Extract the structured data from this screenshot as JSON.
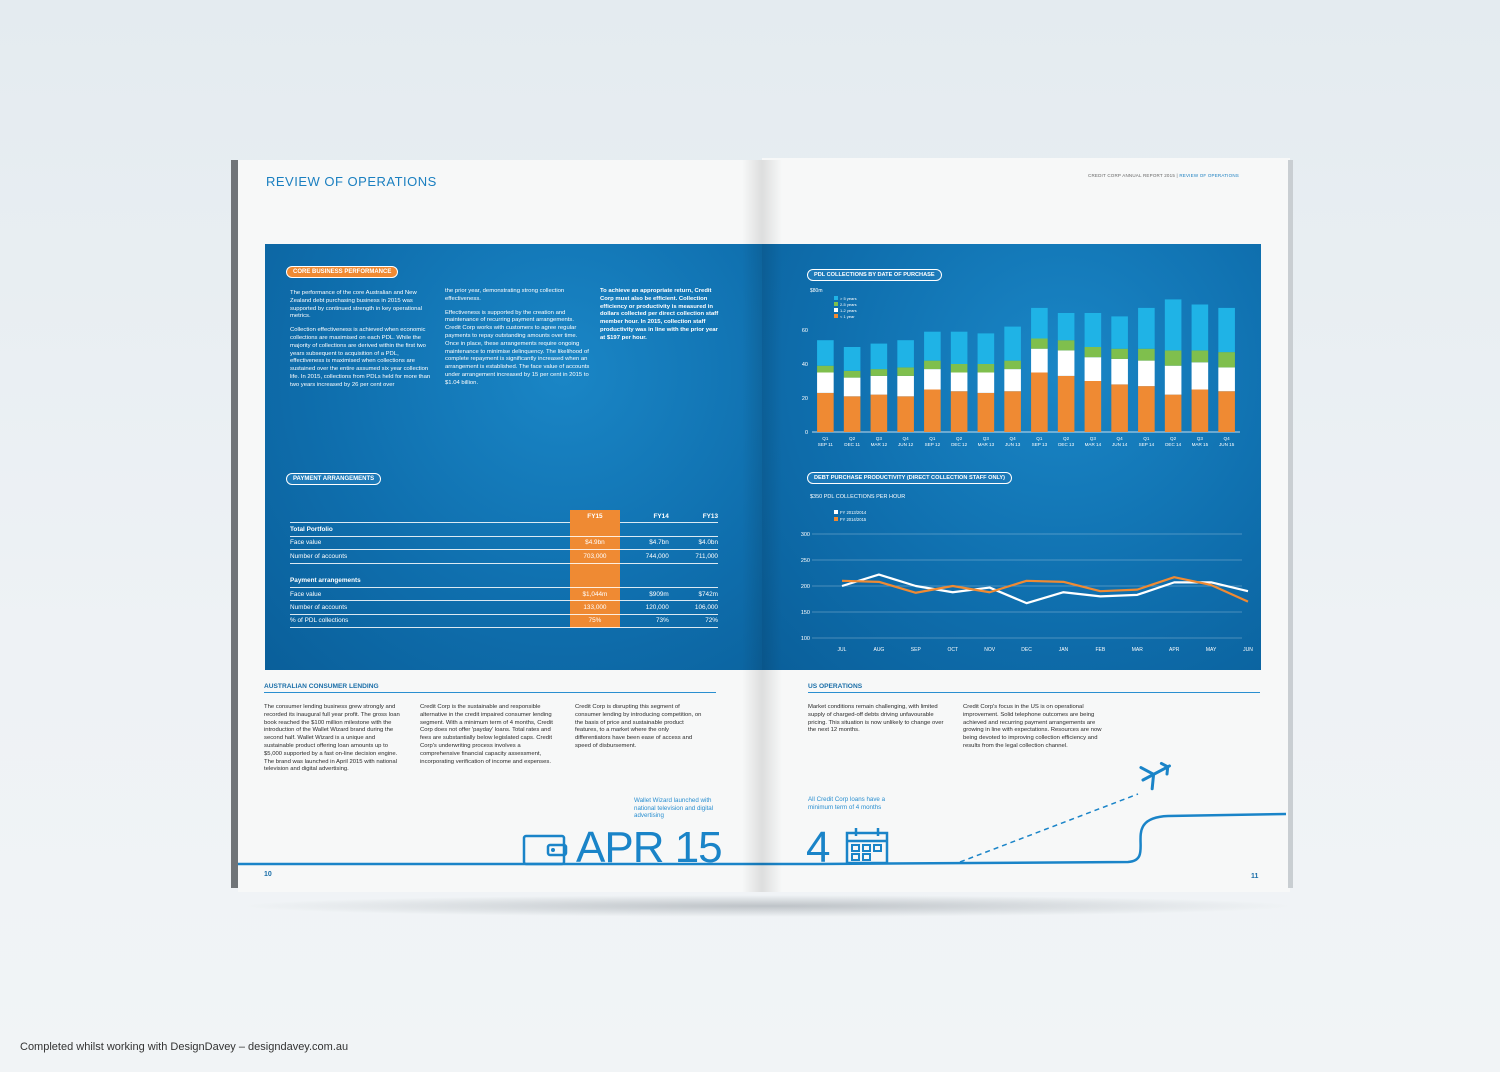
{
  "left_page": {
    "title": "REVIEW OF OPERATIONS",
    "page_number": "10",
    "core": {
      "label": "CORE BUSINESS PERFORMANCE",
      "col1": [
        "The performance of the core Australian and New Zealand debt purchasing business in 2015 was supported by continued strength in key operational metrics.",
        "Collection effectiveness is achieved when economic collections are maximised on each PDL. While the majority of collections are derived within the first two years subsequent to acquisition of a PDL, effectiveness is maximised when collections are sustained over the entire assumed six year collection life. In 2015, collections from PDLs held for more than two years increased by 26 per cent over"
      ],
      "col2": [
        "the prior year, demonstrating strong collection effectiveness.",
        "Effectiveness is supported by the creation and maintenance of recurring payment arrangements. Credit Corp works with customers to agree regular payments to repay outstanding amounts over time. Once in place, these arrangements require ongoing maintenance to minimise delinquency. The likelihood of complete repayment is significantly increased when an arrangement is established. The face value of accounts under arrangement increased by 15 per cent in 2015 to $1.04 billion."
      ],
      "col3": "To achieve an appropriate return, Credit Corp must also be efficient. Collection efficiency or productivity is measured in dollars collected per direct collection staff member hour. In 2015, collection staff productivity was in line with the prior year at $197 per hour."
    },
    "payment": {
      "label": "PAYMENT ARRANGEMENTS",
      "columns": [
        "FY15",
        "FY14",
        "FY13"
      ],
      "rows": [
        {
          "label": "Total Portfolio",
          "values": [
            "",
            "",
            ""
          ],
          "heading": true
        },
        {
          "label": "Face value",
          "values": [
            "$4.9bn",
            "$4.7bn",
            "$4.0bn"
          ]
        },
        {
          "label": "Number of accounts",
          "values": [
            "703,000",
            "744,000",
            "711,000"
          ]
        },
        {
          "label": "",
          "values": [
            "",
            "",
            ""
          ],
          "blank": true
        },
        {
          "label": "Payment arrangements",
          "values": [
            "",
            "",
            ""
          ],
          "heading": true
        },
        {
          "label": "Face value",
          "values": [
            "$1,044m",
            "$909m",
            "$742m"
          ]
        },
        {
          "label": "Number of accounts",
          "values": [
            "133,000",
            "120,000",
            "106,000"
          ]
        },
        {
          "label": "% of PDL collections",
          "values": [
            "75%",
            "73%",
            "72%"
          ]
        }
      ]
    },
    "consumer": {
      "heading": "AUSTRALIAN CONSUMER LENDING",
      "col1": "The consumer lending business grew strongly and recorded its inaugural full year profit. The gross loan book reached the $100 million milestone with the introduction of the Wallet Wizard brand during the second half. Wallet Wizard is a unique and sustainable product offering loan amounts up to $5,000 supported by a fast on-line decision engine. The brand was launched in April 2015 with national television and digital advertising.",
      "col2": "Credit Corp is the sustainable and responsible alternative in the credit impaired consumer lending segment. With a minimum term of 4 months, Credit Corp does not offer 'payday' loans. Total rates and fees are substantially below legislated caps. Credit Corp's underwriting process involves a comprehensive financial capacity assessment, incorporating verification of income and expenses.",
      "col3": "Credit Corp is disrupting this segment of consumer lending by introducing competition, on the basis of price and sustainable product features, to a market where the only differentiators have been ease of access and speed of disbursement.",
      "caption": "Wallet Wizard launched with national television and digital advertising",
      "big_text": "APR 15"
    }
  },
  "right_page": {
    "header": "CREDIT CORP ANNUAL REPORT 2015 |",
    "header_highlight": "REVIEW OF OPERATIONS",
    "page_number": "11",
    "us": {
      "heading": "US OPERATIONS",
      "col1": "Market conditions remain challenging, with limited supply of charged-off debts driving unfavourable pricing. This situation is now unlikely to change over the next 12 months.",
      "col2": "Credit Corp's focus in the US is on operational improvement. Solid telephone outcomes are being achieved and recurring payment arrangements are growing in line with expectations. Resources are now being devoted to improving collection efficiency and results from the legal collection channel.",
      "caption": "All Credit Corp loans have a minimum term of 4 months",
      "big_text": "4"
    }
  },
  "footer": "Completed whilst working with DesignDavey – designdavey.com.au",
  "colors": {
    "accent_blue": "#1a7fc0",
    "orange": "#ef8a33",
    "panel_blue": "#0f6fae",
    "green": "#7fbf4d",
    "cyan": "#1fb3e6"
  },
  "chart_data": [
    {
      "type": "bar",
      "stacked": true,
      "title": "PDL COLLECTIONS BY DATE OF PURCHASE",
      "ylabel": "$80m",
      "ylim": [
        0,
        80
      ],
      "yticks": [
        "0",
        "20",
        "40",
        "60"
      ],
      "categories": [
        [
          "Q1",
          "SEP 11"
        ],
        [
          "Q2",
          "DEC 11"
        ],
        [
          "Q3",
          "MAR 12"
        ],
        [
          "Q4",
          "JUN 12"
        ],
        [
          "Q1",
          "SEP 12"
        ],
        [
          "Q2",
          "DEC 12"
        ],
        [
          "Q3",
          "MAR 13"
        ],
        [
          "Q4",
          "JUN 13"
        ],
        [
          "Q1",
          "SEP 13"
        ],
        [
          "Q2",
          "DEC 13"
        ],
        [
          "Q3",
          "MAR 14"
        ],
        [
          "Q4",
          "JUN 14"
        ],
        [
          "Q1",
          "SEP 14"
        ],
        [
          "Q2",
          "DEC 14"
        ],
        [
          "Q3",
          "MAR 15"
        ],
        [
          "Q4",
          "JUN 15"
        ]
      ],
      "series": [
        {
          "name": "< 1 year",
          "color": "#ef8a33",
          "values": [
            23,
            21,
            22,
            21,
            25,
            24,
            23,
            24,
            35,
            33,
            30,
            28,
            27,
            22,
            25,
            24
          ]
        },
        {
          "name": "1-2 years",
          "color": "#ffffff",
          "values": [
            12,
            11,
            11,
            12,
            12,
            11,
            12,
            13,
            14,
            15,
            14,
            15,
            15,
            17,
            16,
            14
          ]
        },
        {
          "name": "2-5 years",
          "color": "#7fbf4d",
          "values": [
            4,
            4,
            4,
            5,
            5,
            5,
            5,
            5,
            6,
            6,
            6,
            6,
            7,
            9,
            7,
            9
          ]
        },
        {
          "name": "> 5 years",
          "color": "#1fb3e6",
          "values": [
            15,
            14,
            15,
            16,
            17,
            19,
            18,
            20,
            18,
            16,
            20,
            19,
            24,
            30,
            27,
            26
          ]
        }
      ]
    },
    {
      "type": "line",
      "title": "DEBT PURCHASE PRODUCTIVITY (DIRECT COLLECTION STAFF ONLY)",
      "ylabel": "$350 PDL COLLECTIONS PER HOUR",
      "ylim": [
        100,
        350
      ],
      "yticks": [
        "100",
        "150",
        "200",
        "250",
        "300"
      ],
      "categories": [
        "JUL",
        "AUG",
        "SEP",
        "OCT",
        "NOV",
        "DEC",
        "JAN",
        "FEB",
        "MAR",
        "APR",
        "MAY",
        "JUN"
      ],
      "series": [
        {
          "name": "FY 2013/2014",
          "color": "#ffffff",
          "values": [
            200,
            222,
            200,
            188,
            197,
            167,
            188,
            180,
            183,
            207,
            207,
            190
          ]
        },
        {
          "name": "FY 2014/2015",
          "color": "#ef8a33",
          "values": [
            210,
            208,
            187,
            200,
            188,
            210,
            208,
            190,
            193,
            217,
            202,
            170
          ]
        }
      ]
    }
  ]
}
